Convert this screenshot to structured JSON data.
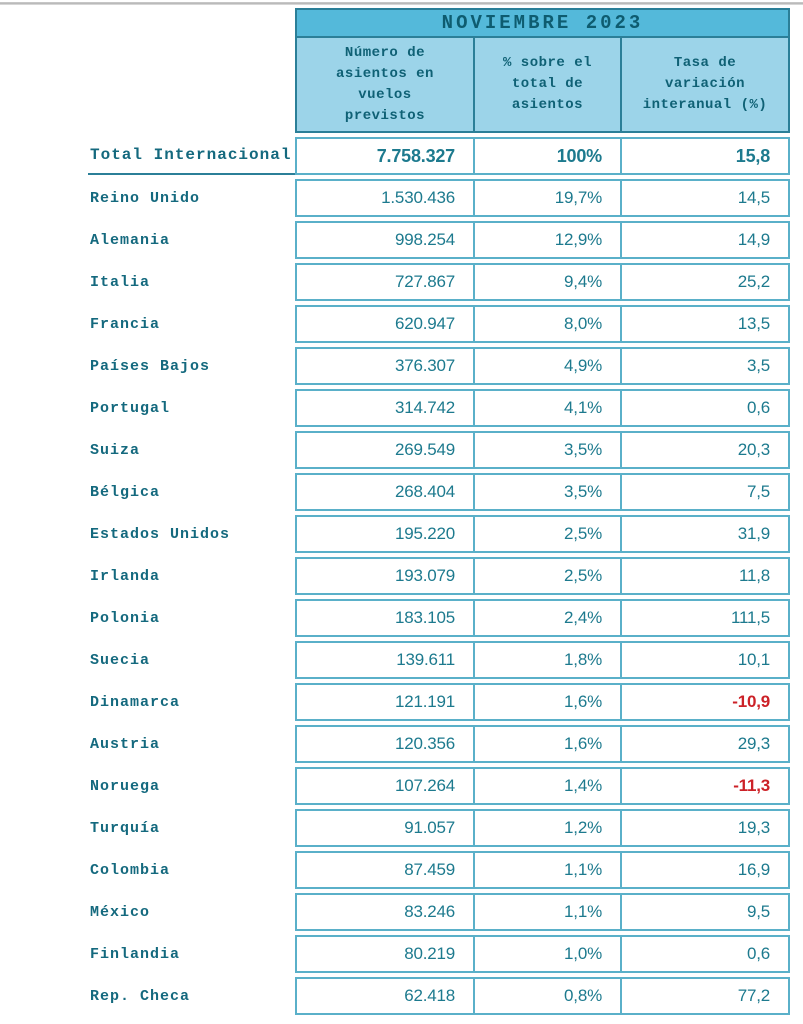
{
  "title": "NOVIEMBRE 2023",
  "columns": {
    "seats": "Número de\nasientos en\nvuelos\nprevistos",
    "share": "% sobre el\ntotal de\nasientos",
    "variation": "Tasa de\nvariación\ninteranual (%)"
  },
  "colors": {
    "header_bg": "#54b9da",
    "subheader_bg": "#9cd4e9",
    "border_dark": "#2b7f98",
    "grid": "#5ab0c9",
    "label_teal": "#14697e",
    "text_teal": "#1d7a8e",
    "negative_red": "#cc2127"
  },
  "table": {
    "rows": [
      {
        "country": "Total Internacional",
        "seats": "7.758.327",
        "share": "100%",
        "variation": "15,8",
        "total": true,
        "negative": false
      },
      {
        "country": "Reino Unido",
        "seats": "1.530.436",
        "share": "19,7%",
        "variation": "14,5",
        "total": false,
        "negative": false
      },
      {
        "country": "Alemania",
        "seats": "998.254",
        "share": "12,9%",
        "variation": "14,9",
        "total": false,
        "negative": false
      },
      {
        "country": "Italia",
        "seats": "727.867",
        "share": "9,4%",
        "variation": "25,2",
        "total": false,
        "negative": false
      },
      {
        "country": "Francia",
        "seats": "620.947",
        "share": "8,0%",
        "variation": "13,5",
        "total": false,
        "negative": false
      },
      {
        "country": "Países Bajos",
        "seats": "376.307",
        "share": "4,9%",
        "variation": "3,5",
        "total": false,
        "negative": false
      },
      {
        "country": "Portugal",
        "seats": "314.742",
        "share": "4,1%",
        "variation": "0,6",
        "total": false,
        "negative": false
      },
      {
        "country": "Suiza",
        "seats": "269.549",
        "share": "3,5%",
        "variation": "20,3",
        "total": false,
        "negative": false
      },
      {
        "country": "Bélgica",
        "seats": "268.404",
        "share": "3,5%",
        "variation": "7,5",
        "total": false,
        "negative": false
      },
      {
        "country": "Estados Unidos",
        "seats": "195.220",
        "share": "2,5%",
        "variation": "31,9",
        "total": false,
        "negative": false
      },
      {
        "country": "Irlanda",
        "seats": "193.079",
        "share": "2,5%",
        "variation": "11,8",
        "total": false,
        "negative": false
      },
      {
        "country": "Polonia",
        "seats": "183.105",
        "share": "2,4%",
        "variation": "111,5",
        "total": false,
        "negative": false
      },
      {
        "country": "Suecia",
        "seats": "139.611",
        "share": "1,8%",
        "variation": "10,1",
        "total": false,
        "negative": false
      },
      {
        "country": "Dinamarca",
        "seats": "121.191",
        "share": "1,6%",
        "variation": "-10,9",
        "total": false,
        "negative": true
      },
      {
        "country": "Austria",
        "seats": "120.356",
        "share": "1,6%",
        "variation": "29,3",
        "total": false,
        "negative": false
      },
      {
        "country": "Noruega",
        "seats": "107.264",
        "share": "1,4%",
        "variation": "-11,3",
        "total": false,
        "negative": true
      },
      {
        "country": "Turquía",
        "seats": "91.057",
        "share": "1,2%",
        "variation": "19,3",
        "total": false,
        "negative": false
      },
      {
        "country": "Colombia",
        "seats": "87.459",
        "share": "1,1%",
        "variation": "16,9",
        "total": false,
        "negative": false
      },
      {
        "country": "México",
        "seats": "83.246",
        "share": "1,1%",
        "variation": "9,5",
        "total": false,
        "negative": false
      },
      {
        "country": "Finlandia",
        "seats": "80.219",
        "share": "1,0%",
        "variation": "0,6",
        "total": false,
        "negative": false
      },
      {
        "country": "Rep. Checa",
        "seats": "62.418",
        "share": "0,8%",
        "variation": "77,2",
        "total": false,
        "negative": false
      }
    ]
  }
}
